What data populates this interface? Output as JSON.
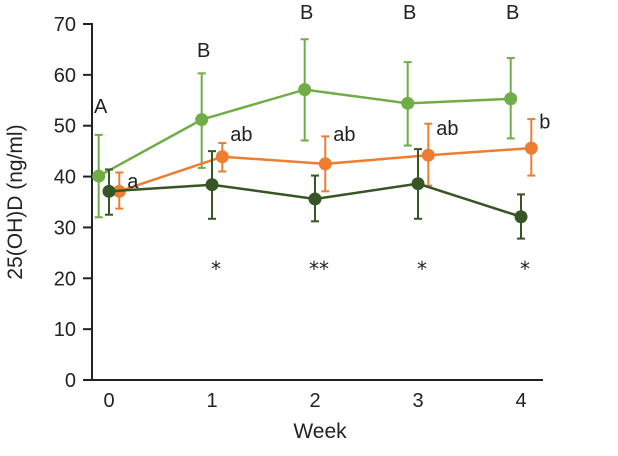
{
  "chart_data": {
    "type": "line",
    "title": "",
    "xlabel": "Week",
    "ylabel": "25(OH)D (ng/ml)",
    "x": [
      0,
      1,
      2,
      3,
      4
    ],
    "x_tick_labels": [
      "0",
      "1",
      "2",
      "3",
      "4"
    ],
    "ylim": [
      0,
      70
    ],
    "y_ticks": [
      0,
      10,
      20,
      30,
      40,
      50,
      60,
      70
    ],
    "y_tick_labels": [
      "0",
      "10",
      "20",
      "30",
      "40",
      "50",
      "60",
      "70"
    ],
    "grid": false,
    "legend": null,
    "series": [
      {
        "name": "light-green",
        "color": "#70ad47",
        "values": [
          40.1,
          51.2,
          57.1,
          54.4,
          55.3
        ],
        "err_upper": [
          48.2,
          60.3,
          67.0,
          62.5,
          63.3
        ],
        "err_lower": [
          32.0,
          41.7,
          47.1,
          46.1,
          47.5
        ],
        "offset": -0.1
      },
      {
        "name": "orange",
        "color": "#ed7d31",
        "values": [
          37.1,
          43.9,
          42.5,
          44.2,
          45.6
        ],
        "err_upper": [
          40.8,
          46.6,
          47.9,
          50.4,
          51.3
        ],
        "err_lower": [
          33.7,
          41.0,
          37.1,
          38.2,
          40.2
        ],
        "offset": 0.1
      },
      {
        "name": "dark-green",
        "color": "#375623",
        "values": [
          37.1,
          38.4,
          35.6,
          38.6,
          32.1
        ],
        "err_upper": [
          41.4,
          45.0,
          40.2,
          45.4,
          36.5
        ],
        "err_lower": [
          32.5,
          31.7,
          31.2,
          31.7,
          27.8
        ],
        "offset": 0.0
      }
    ],
    "annotations": {
      "upper_letters": [
        {
          "x": 0,
          "text": "A",
          "y": 52.5
        },
        {
          "x": 1,
          "text": "B",
          "y": 63.5
        },
        {
          "x": 2,
          "text": "B",
          "y": 71
        },
        {
          "x": 3,
          "text": "B",
          "y": 71
        },
        {
          "x": 4,
          "text": "B",
          "y": 71
        }
      ],
      "lower_letters": [
        {
          "x": 0,
          "text": "a",
          "y": 37.8
        },
        {
          "x": 1,
          "text": "ab",
          "y": 47.0
        },
        {
          "x": 2,
          "text": "ab",
          "y": 47.0
        },
        {
          "x": 3,
          "text": "ab",
          "y": 48.2
        },
        {
          "x": 4,
          "text": "b",
          "y": 49.5
        }
      ],
      "asterisks": [
        {
          "x": 1,
          "text": "*"
        },
        {
          "x": 2,
          "text": "**"
        },
        {
          "x": 3,
          "text": "*"
        },
        {
          "x": 4,
          "text": "*"
        }
      ],
      "asterisk_y": 22
    }
  }
}
